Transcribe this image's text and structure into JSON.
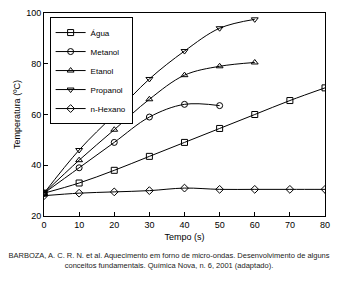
{
  "chart_data": {
    "type": "line",
    "x_label": "Tempo (s)",
    "y_label": "Temperatura (ºC)",
    "source": "BARBOZA, A. C. R. N. et al. Aquecimento em forno de micro-ondas. Desenvolvimento de alguns conceitos fundamentais. Química Nova, n. 6, 2001 (adaptado).",
    "xlim": [
      0,
      80
    ],
    "xticks": [
      0,
      10,
      20,
      30,
      40,
      50,
      60,
      70,
      80
    ],
    "ylim": [
      20,
      100
    ],
    "yticks": [
      20,
      40,
      60,
      80,
      100
    ],
    "grid": false,
    "legend": "upper left",
    "series": [
      {
        "name": "Água",
        "color": "#000000",
        "marker": "square-open",
        "line_style": "solid",
        "x": [
          0,
          10,
          20,
          30,
          40,
          50,
          60,
          70,
          80
        ],
        "values": [
          29,
          33,
          38,
          43.5,
          49,
          54.5,
          60,
          65.5,
          70.5
        ]
      },
      {
        "name": "Metanol",
        "color": "#000000",
        "marker": "circle-open",
        "line_style": "solid",
        "x": [
          0,
          10,
          20,
          30,
          40,
          50
        ],
        "values": [
          29,
          39,
          49,
          59,
          64,
          63.5
        ]
      },
      {
        "name": "Etanol",
        "color": "#000000",
        "marker": "triangle-up-open",
        "line_style": "solid",
        "x": [
          0,
          10,
          20,
          30,
          40,
          50,
          60
        ],
        "values": [
          29,
          42,
          54,
          66,
          75.5,
          79,
          80.5
        ]
      },
      {
        "name": "Propanol",
        "color": "#000000",
        "marker": "triangle-down-open",
        "line_style": "solid",
        "x": [
          0,
          10,
          20,
          30,
          40,
          50,
          60
        ],
        "values": [
          29,
          46,
          60,
          74,
          85,
          94,
          97.5
        ]
      },
      {
        "name": "n-Hexano",
        "color": "#000000",
        "marker": "diamond-open",
        "line_style": "solid",
        "x": [
          0,
          10,
          20,
          30,
          40,
          50,
          60,
          70,
          80
        ],
        "values": [
          28,
          29,
          29.5,
          30,
          31,
          30.5,
          30.5,
          30.5,
          30.5
        ]
      }
    ]
  }
}
